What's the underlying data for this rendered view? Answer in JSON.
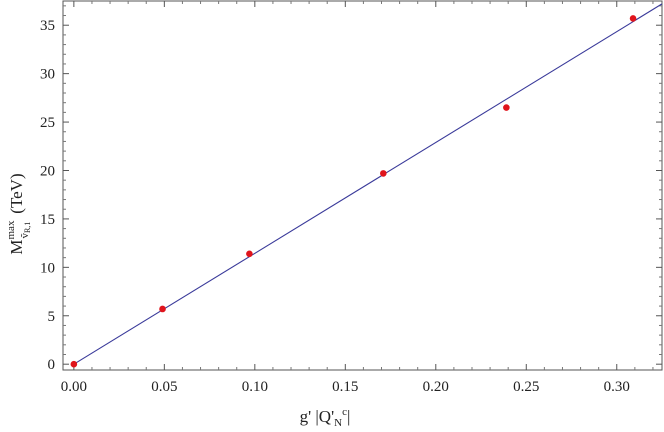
{
  "chart_data": {
    "type": "scatter",
    "xlabel": {
      "text": "g' |Q'",
      "sub": "N",
      "sup": "c",
      "end": "|"
    },
    "ylabel": {
      "main": "M",
      "sup": "max",
      "sub": "ṽ",
      "subsub": "R,1",
      "unit": "(TeV)"
    },
    "xlim": [
      -0.006,
      0.325
    ],
    "ylim": [
      -0.6,
      37.5
    ],
    "x_ticks": [
      0.0,
      0.05,
      0.1,
      0.15,
      0.2,
      0.25,
      0.3
    ],
    "x_tick_labels": [
      "0.00",
      "0.05",
      "0.10",
      "0.15",
      "0.20",
      "0.25",
      "0.30"
    ],
    "y_ticks": [
      0,
      5,
      10,
      15,
      20,
      25,
      30,
      35
    ],
    "y_tick_labels": [
      "0",
      "5",
      "10",
      "15",
      "20",
      "25",
      "30",
      "35"
    ],
    "grid": false,
    "series": [
      {
        "kind": "points",
        "color": "#e0141c",
        "x": [
          0.0,
          0.049,
          0.097,
          0.171,
          0.239,
          0.309
        ],
        "y": [
          0.0,
          5.7,
          11.4,
          19.7,
          26.5,
          35.7
        ]
      },
      {
        "kind": "line",
        "color": "#3a3a9a",
        "x": [
          0.0,
          0.325
        ],
        "y": [
          0.0,
          37.2
        ]
      }
    ]
  }
}
